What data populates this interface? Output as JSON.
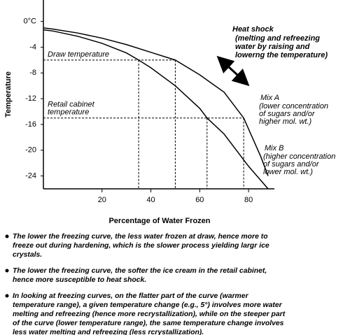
{
  "chart_data": {
    "type": "line",
    "ylabel": "Temperature",
    "xlabel": "Percentage of Water Frozen",
    "xlim": [
      -4,
      90
    ],
    "ylim": [
      -26,
      3
    ],
    "xticks": [
      20,
      40,
      60,
      80
    ],
    "yticks": [
      {
        "value": 0,
        "label": "0°C"
      },
      -4,
      -8,
      -12,
      -16,
      -20,
      -24
    ],
    "series": [
      {
        "name": "Mix A",
        "color": "#000000",
        "x": [
          -4,
          0,
          10,
          20,
          30,
          40,
          50,
          60,
          70,
          78,
          85,
          88
        ],
        "values": [
          -1,
          -1.2,
          -1.8,
          -2.6,
          -3.6,
          -4.8,
          -6,
          -8.3,
          -11,
          -15,
          -21,
          -24
        ],
        "description": [
          "(lower concentration",
          "of sugars and/or",
          "higher mol. wt.)"
        ]
      },
      {
        "name": "Mix B",
        "color": "#000000",
        "x": [
          -4,
          0,
          10,
          20,
          30,
          35,
          40,
          50,
          60,
          63,
          70,
          80,
          88
        ],
        "values": [
          -1.3,
          -1.5,
          -2.3,
          -3.4,
          -4.9,
          -6,
          -7.2,
          -10,
          -13.5,
          -15,
          -17.5,
          -22.5,
          -26
        ],
        "description": [
          "(higher concentration",
          "of sugars and/or",
          "lower mol. wt.)"
        ]
      }
    ],
    "reference_lines": [
      {
        "label": [
          "Draw temperature"
        ],
        "y": -6,
        "x": [
          35,
          50
        ]
      },
      {
        "label": [
          "Retail cabinet",
          "temperature"
        ],
        "y": -15,
        "x": [
          63,
          78
        ]
      }
    ],
    "annotation": {
      "title": "Heat shock",
      "lines": [
        "(melting and refreezing",
        "water by raising and",
        "lowerng the temperature)"
      ]
    },
    "notes": [
      [
        "The lower the freezing curve, the less water frozen at draw, hence more to",
        "freeze out during hardening, which is the slower process yielding largr ice",
        "crystals."
      ],
      [
        "The lower the freezing curve, the softer the ice cream in the retail cabinet,",
        "hence more susceptible to heat shock."
      ],
      [
        "In looking at freezing curves, on the flatter part of the curve (warmer",
        "temperature range), a given temperature change (e.g., 5°) involves more water",
        "melting and refreezing (hence more recrystallization), while on the steeper part",
        "of the curve (lower temperature range), the same temperature change involves",
        "less water melting and refreezing (less rcrystallization)."
      ]
    ]
  }
}
